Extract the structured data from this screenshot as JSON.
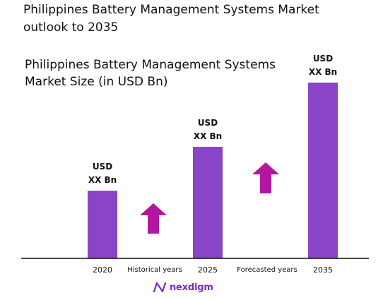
{
  "title": "Philippines Battery Management Systems Market outlook to 2035",
  "brand": {
    "name": "nexdigm",
    "logo_color": "#7b2bbf"
  },
  "colors": {
    "bar": "#8a44c7",
    "arrow": "#b4169f",
    "axis": "#111111"
  },
  "chart_data": {
    "type": "bar",
    "title": "Philippines Battery Management Systems Market Size (in USD Bn)",
    "categories": [
      "2020",
      "2025",
      "2035"
    ],
    "values": [
      1.0,
      1.65,
      2.6
    ],
    "value_labels": [
      [
        "USD",
        "XX Bn"
      ],
      [
        "USD",
        "XX Bn"
      ],
      [
        "USD",
        "XX Bn"
      ]
    ],
    "period_labels": [
      "Historical years",
      "Forecasted years"
    ],
    "ylim": [
      0,
      2.6
    ],
    "grid": false,
    "legend": "none"
  }
}
